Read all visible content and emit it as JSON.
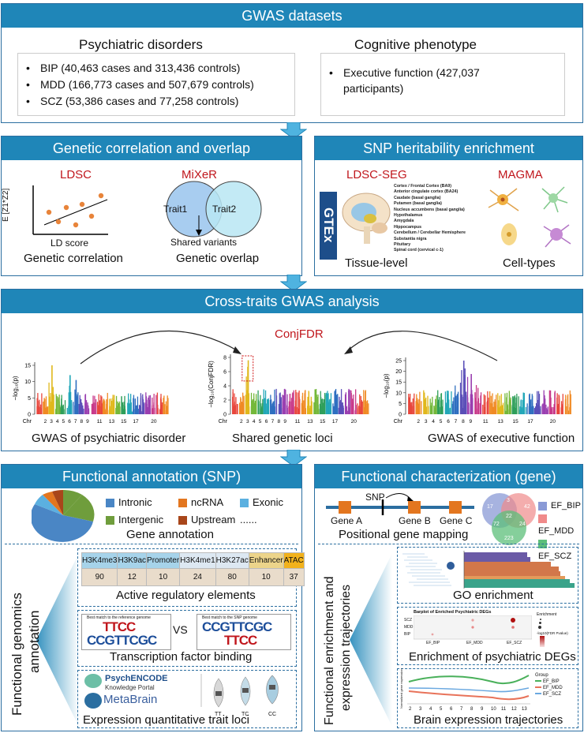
{
  "gwas": {
    "title": "GWAS datasets",
    "psych_title": "Psychiatric disorders",
    "psych_items": [
      "BIP (40,463 cases and 313,436 controls)",
      "MDD (166,773 cases and 507,679 controls)",
      "SCZ (53,386 cases and  77,258 controls)"
    ],
    "cog_title": "Cognitive phenotype",
    "cog_items": [
      "Executive function (427,037 participants)"
    ]
  },
  "genetic": {
    "title": "Genetic correlation and overlap",
    "ldsc": "LDSC",
    "mixer": "MiXeR",
    "ylabel": "E [Z1*Z2]",
    "xlabel": "LD score",
    "corr_caption": "Genetic correlation",
    "trait1": "Trait1",
    "trait2": "Trait2",
    "shared": "Shared variants",
    "overlap_caption": "Genetic overlap"
  },
  "snp": {
    "title": "SNP heritability enrichment",
    "ldsc_seg": "LDSC-SEG",
    "magma": "MAGMA",
    "gtex": "GTEx",
    "tissues": [
      "Cortex / Frontal Cortex (BA9)",
      "Anterior cingulate cortex (BA24)",
      "Caudate (basal ganglia)",
      "Putamen (basal ganglia)",
      "Nucleus accumbens (basal ganglia)",
      "Hypothalamus",
      "Amygdala",
      "Hippocampus",
      "Cerebellum / Cerebellar Hemisphere",
      "Substantia nigra",
      "Pituitary",
      "Spinal cord (cervical c-1)"
    ],
    "tissue_caption": "Tissue-level",
    "cell_caption": "Cell-types"
  },
  "cross": {
    "title": "Cross-traits GWAS analysis",
    "conjfdr": "ConjFDR",
    "left_caption": "GWAS of psychiatric disorder",
    "mid_caption": "Shared genetic loci",
    "right_caption": "GWAS of executive function",
    "left_ylabel": "−log₁₀(p)",
    "mid_ylabel": "−log₁₀(ConjFDR)",
    "right_ylabel": "−log₁₀(p)",
    "chr": "Chr",
    "left_ticks": [
      "0",
      "5",
      "10",
      "15"
    ],
    "mid_ticks": [
      "0",
      "2",
      "4",
      "6",
      "8"
    ],
    "right_ticks": [
      "0",
      "5",
      "10",
      "15",
      "20",
      "25"
    ],
    "chr_labels": [
      "2",
      "3",
      "4",
      "5",
      "6",
      "7",
      "8",
      "9",
      "11",
      "13",
      "15",
      "17",
      "20"
    ]
  },
  "func_snp": {
    "title": "Functional annotation (SNP)",
    "legend": [
      {
        "label": "Intronic",
        "color": "#4a86c5"
      },
      {
        "label": "ncRNA",
        "color": "#e3761f"
      },
      {
        "label": "Exonic",
        "color": "#5bb0e0"
      },
      {
        "label": "Intergenic",
        "color": "#6f9d3c"
      },
      {
        "label": "Upstream",
        "color": "#a8461a"
      },
      {
        "label": "......",
        "color": ""
      }
    ],
    "gene_annotation": "Gene annotation",
    "side_label_1": "Functional genomics",
    "side_label_2": "annotation",
    "marks": [
      "H3K4me3",
      "H3K9ac",
      "Promoter",
      "H3K4me1",
      "H3K27ac",
      "Enhancer",
      "ATAC"
    ],
    "mark_values": [
      "90",
      "12",
      "10",
      "24",
      "80",
      "10",
      "37"
    ],
    "mark_colors": [
      "#a6d3ea",
      "#a6d3ea",
      "#a6d3ea",
      "#dde8f2",
      "#dde8f2",
      "#ecd48a",
      "#f2b21b"
    ],
    "reg_caption": "Active regulatory elements",
    "vs": "VS",
    "motif_title_1": "Best match to the reference genome",
    "motif_title_2": "Best match to the SNP genome",
    "motif_a": "TTCC",
    "motif_b": "CCGTTCGC",
    "tf_caption": "Transcription factor binding",
    "psychencode": "PsychENCODE",
    "knowledge": "Knowledge Portal",
    "metabrain": "MetaBrain",
    "eqtl_genotypes": [
      "TT",
      "TC",
      "CC"
    ],
    "eqtl_caption": "Expression quantitative trait loci"
  },
  "func_gene": {
    "title": "Functional characterization (gene)",
    "snp": "SNP",
    "genes": [
      "Gene A",
      "Gene B",
      "Gene C"
    ],
    "mapping_caption": "Positional gene mapping",
    "venn_values": [
      "17",
      "3",
      "42",
      "22",
      "72",
      "24",
      "223"
    ],
    "venn_legend": [
      {
        "label": "EF_BIP",
        "color": "#8a9ad6"
      },
      {
        "label": "EF_MDD",
        "color": "#f08a8a"
      },
      {
        "label": "EF_SCZ",
        "color": "#5cbf7a"
      }
    ],
    "side_label_1": "Functional enrichment and",
    "side_label_2": "expression trajectories",
    "go_caption": "GO enrichment",
    "deg_title": "Barplot of Enriched Psychiatric DEGs",
    "deg_rows": [
      "SCZ",
      "MDD",
      "BIP"
    ],
    "deg_cols": [
      "EF_BIP",
      "EF_MDD",
      "EF_SCZ"
    ],
    "deg_legend": "Enrichment",
    "deg_fdr": "-log10(FDR Pvalue)",
    "deg_caption": "Enrichment of psychiatric DEGs",
    "traj_legend_title": "Group",
    "traj_legend": [
      "EF_BIP",
      "EF_MDD",
      "EF_SCZ"
    ],
    "traj_ticks": [
      "2",
      "3",
      "4",
      "5",
      "6",
      "7",
      "8",
      "9",
      "10",
      "11",
      "12",
      "13"
    ],
    "traj_ylabel": "Normalized gene expression",
    "traj_caption": "Brain expression trajectories"
  }
}
